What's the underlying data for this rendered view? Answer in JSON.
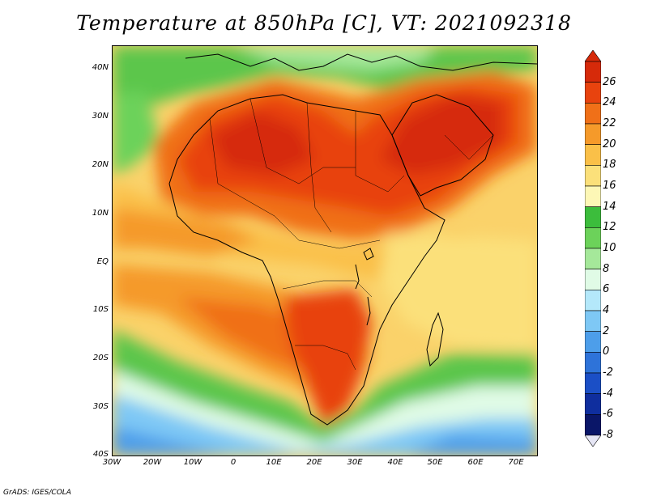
{
  "title": "Temperature at 850hPa [C], VT: 2021092318",
  "credit": "GrADS: IGES/COLA",
  "map": {
    "lat_labels": [
      "40N",
      "30N",
      "20N",
      "10N",
      "EQ",
      "10S",
      "20S",
      "30S",
      "40S"
    ],
    "lon_labels": [
      "30W",
      "20W",
      "10W",
      "0",
      "10E",
      "20E",
      "30E",
      "40E",
      "50E",
      "60E",
      "70E"
    ],
    "lat_range": [
      -40,
      45
    ],
    "lon_range": [
      -30,
      75
    ],
    "field": "850hPa temperature (C)"
  },
  "colorbar": {
    "labels": [
      "26",
      "24",
      "22",
      "20",
      "18",
      "16",
      "14",
      "12",
      "10",
      "8",
      "6",
      "4",
      "2",
      "0",
      "-2",
      "-4",
      "-6",
      "-8"
    ],
    "colors": [
      "#d62a0a",
      "#e8430e",
      "#f07018",
      "#f59a2a",
      "#fac048",
      "#fbe07a",
      "#fdf7b6",
      "#3cbd3c",
      "#6cd25a",
      "#a5e89a",
      "#e0fbe6",
      "#b4e8fa",
      "#7ec8f5",
      "#4d9eea",
      "#2e73d9",
      "#1b4fc6",
      "#0f2e9e",
      "#0a1668"
    ],
    "orientation": "vertical",
    "position": "right"
  }
}
